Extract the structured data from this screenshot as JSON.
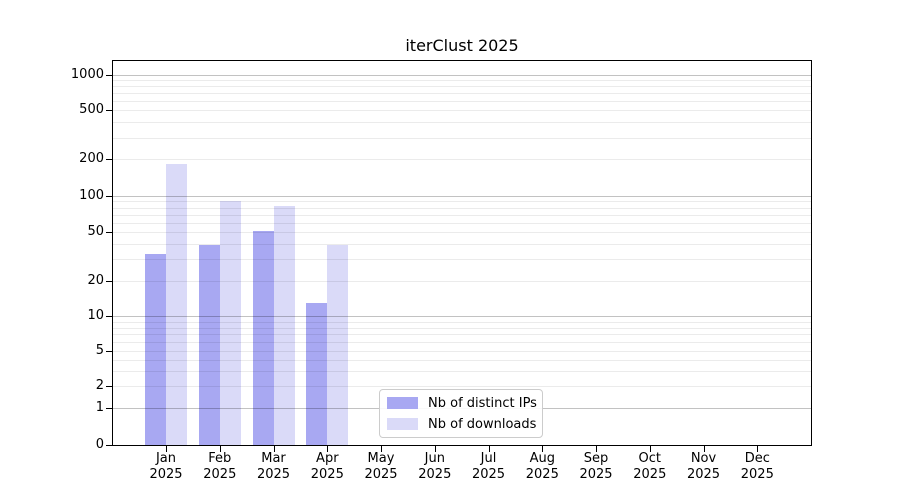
{
  "chart_data": {
    "type": "bar",
    "title": "iterClust 2025",
    "categories": [
      "Jan",
      "Feb",
      "Mar",
      "Apr",
      "May",
      "Jun",
      "Jul",
      "Aug",
      "Sep",
      "Oct",
      "Nov",
      "Dec"
    ],
    "year": "2025",
    "series": [
      {
        "name": "Nb of distinct IPs",
        "color": "#a8a8f2",
        "values": [
          33,
          39,
          51,
          13,
          0,
          0,
          0,
          0,
          0,
          0,
          0,
          0
        ]
      },
      {
        "name": "Nb of downloads",
        "color": "#dadaf8",
        "values": [
          183,
          90,
          82,
          39,
          0,
          0,
          0,
          0,
          0,
          0,
          0,
          0
        ]
      }
    ],
    "y_ticks": [
      0,
      1,
      2,
      5,
      10,
      20,
      50,
      100,
      200,
      500,
      1000
    ],
    "y_scale": "symlog",
    "ylim": [
      0,
      1300
    ],
    "xlabel": "",
    "ylabel": "",
    "grid": true,
    "grid_minor_values": [
      2,
      3,
      4,
      5,
      6,
      7,
      8,
      9,
      20,
      30,
      40,
      50,
      60,
      70,
      80,
      90,
      200,
      300,
      400,
      500,
      600,
      700,
      800,
      900
    ],
    "grid_major_values": [
      1,
      10,
      100,
      1000
    ],
    "legend_position": "lower-center"
  },
  "colors": {
    "bar_distinct_ips": "#a8a8f2",
    "bar_downloads": "#dadaf8",
    "grid_major": "rgba(0,0,0,0.24)",
    "grid_minor": "rgba(0,0,0,0.08)",
    "spine": "#000000",
    "text": "#000000",
    "legend_border": "#cccccc"
  }
}
